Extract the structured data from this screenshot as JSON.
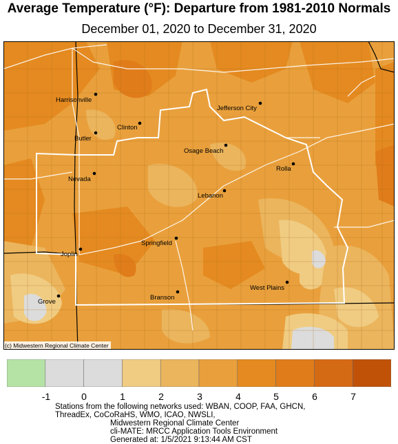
{
  "title": "Average Temperature (°F): Departure from 1981-2010 Normals",
  "subtitle": "December 01, 2020 to December 31, 2020",
  "credit": "(c) Midwestern Regional Climate Center",
  "cities": [
    {
      "name": "Harrisonville"
    },
    {
      "name": "Clinton"
    },
    {
      "name": "Butler"
    },
    {
      "name": "Jefferson City"
    },
    {
      "name": "Osage Beach"
    },
    {
      "name": "Nevada"
    },
    {
      "name": "Rolla"
    },
    {
      "name": "Lebanon"
    },
    {
      "name": "Springfield"
    },
    {
      "name": "Joplin"
    },
    {
      "name": "West Plains"
    },
    {
      "name": "Branson"
    },
    {
      "name": "Grove"
    }
  ],
  "legend": {
    "bins": [
      {
        "min": -1,
        "max": 0,
        "color": "#b5e3a6"
      },
      {
        "min": 0,
        "max": 1,
        "color": "#dcdcdc"
      },
      {
        "min": 1,
        "max": 2,
        "color": "#dcdcdc"
      },
      {
        "min": 2,
        "max": 3,
        "color": "#f0cc82"
      },
      {
        "min": 3,
        "max": 4,
        "color": "#ebb55d"
      },
      {
        "min": 4,
        "max": 5,
        "color": "#e9a03c"
      },
      {
        "min": 5,
        "max": 6,
        "color": "#e48a20"
      },
      {
        "min": 6,
        "max": 7,
        "color": "#e07c1a"
      },
      {
        "min": 7,
        "max": 8,
        "color": "#d56a14"
      },
      {
        "min": 8,
        "max": 9,
        "color": "#c05208"
      }
    ],
    "ticks": [
      "-1",
      "0",
      "1",
      "2",
      "3",
      "4",
      "5",
      "6",
      "7"
    ]
  },
  "footer": {
    "line1": "Stations from the following networks used: WBAN, COOP, FAA, GHCN,",
    "line2": "ThreadEx, CoCoRaHS, WMO, ICAO, NWSLI,",
    "line3": "Midwestern Regional Climate Center",
    "line4": "cli-MATE: MRCC Application Tools Environment",
    "line5": "Generated at: 1/5/2021 9:13:44 AM CST"
  }
}
